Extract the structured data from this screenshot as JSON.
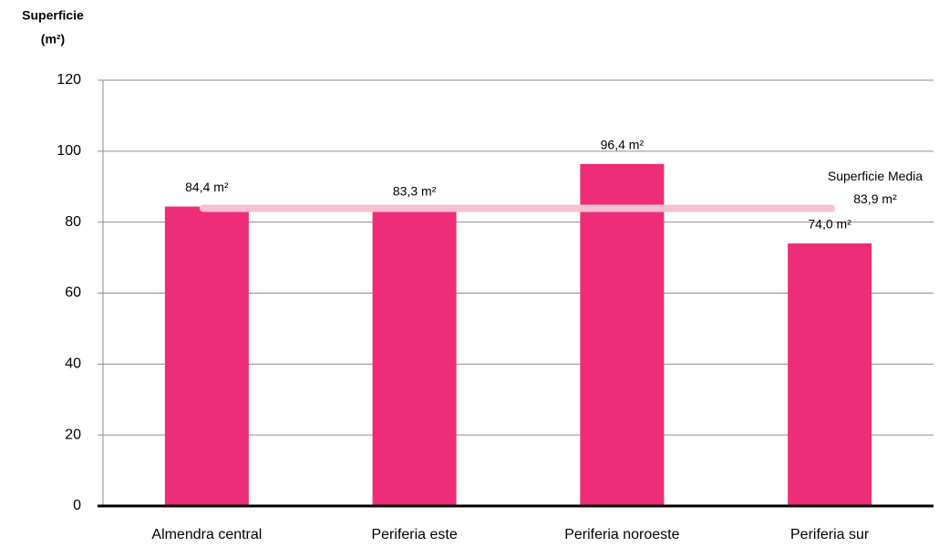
{
  "chart_data": {
    "type": "bar",
    "y_label": [
      "Superficie",
      "(m²)"
    ],
    "categories": [
      "Almendra central",
      "Periferia este",
      "Periferia noroeste",
      "Periferia sur"
    ],
    "values": [
      84.4,
      83.3,
      96.4,
      74.0
    ],
    "value_labels": [
      "84,4 m²",
      "83,3 m²",
      "96,4 m²",
      "74,0 m²"
    ],
    "color": "#ee2d78",
    "ylim": [
      0,
      120
    ],
    "yticks": [
      0,
      20,
      40,
      60,
      80,
      100,
      120
    ],
    "grid": true,
    "reference_line": {
      "name": "Superficie Media",
      "value": 83.9,
      "value_label": "83,9 m²",
      "color": "#f7c1cf"
    }
  }
}
